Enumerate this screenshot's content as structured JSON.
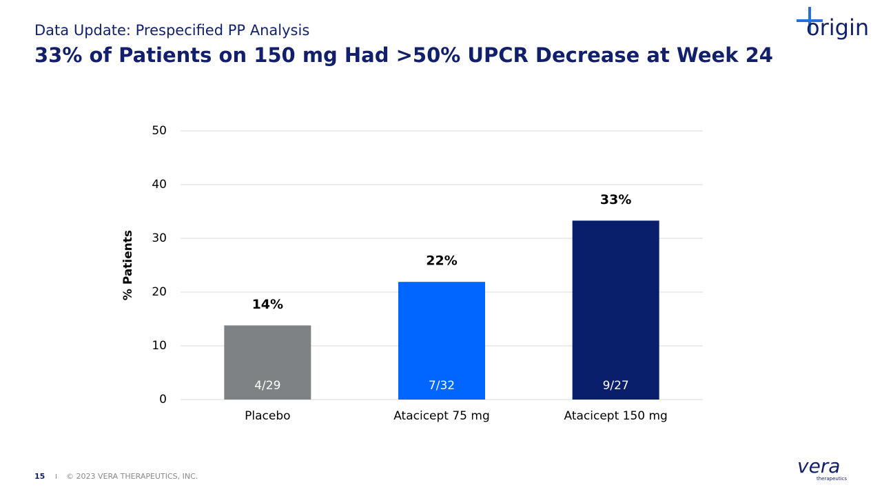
{
  "slide": {
    "subtitle": "Data Update: Prespecified PP Analysis",
    "headline": "33% of Patients on 150 mg Had >50% UPCR Decrease at Week 24",
    "page_number": "15",
    "separator": "I",
    "copyright": "© 2023 VERA THERAPEUTICS, INC.",
    "logo_top": "origin",
    "logo_bottom": "vera",
    "logo_bottom_sub": "therapeutics"
  },
  "chart_data": {
    "type": "bar",
    "ylabel": "% Patients",
    "categories": [
      "Placebo",
      "Atacicept 75 mg",
      "Atacicept 150 mg"
    ],
    "values": [
      13.8,
      21.9,
      33.3
    ],
    "value_labels": [
      "14%",
      "22%",
      "33%"
    ],
    "inner_labels": [
      "4/29",
      "7/32",
      "9/27"
    ],
    "colors": [
      "#7f8285",
      "#0066ff",
      "#0a1f6b"
    ],
    "ylim": [
      0,
      50
    ],
    "yticks": [
      0,
      10,
      20,
      30,
      40,
      50
    ],
    "grid": true
  }
}
